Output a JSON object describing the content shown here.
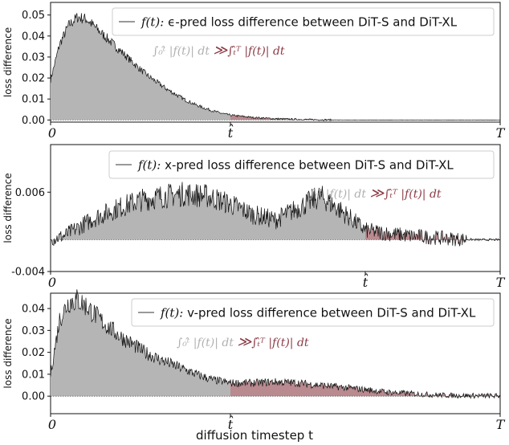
{
  "xlabel": "diffusion timestep t",
  "colors": {
    "gray_fill": "#b5b5b5",
    "red_fill": "#b98a8f",
    "red_text": "#8b3a44",
    "gray_text": "#b0b0b0",
    "line": "#111111"
  },
  "chart_data": [
    {
      "type": "area",
      "title": "",
      "ylabel": "loss difference",
      "ylim": [
        -0.001,
        0.056
      ],
      "yticks": [
        "0.00",
        "0.01",
        "0.02",
        "0.03",
        "0.04",
        "0.05"
      ],
      "ytick_values": [
        0.0,
        0.01,
        0.02,
        0.03,
        0.04,
        0.05
      ],
      "xticks": [
        "0",
        "t̂",
        "T"
      ],
      "xtick_values": [
        0,
        0.4,
        1.0
      ],
      "t_hat": 0.4,
      "legend_label": "f(t): ϵ-pred loss difference between DiT-S and DiT-XL",
      "legend_fn": "f(t):",
      "legend_desc": "ϵ-pred loss difference between DiT-S and DiT-XL",
      "annotation_left": "∫₀ᵗ̂ |f(t)| dt",
      "annotation_op": "≫",
      "annotation_right": "∫ₜ̂ᵀ |f(t)| dt",
      "x": [
        0,
        0.02,
        0.04,
        0.06,
        0.08,
        0.1,
        0.12,
        0.14,
        0.16,
        0.18,
        0.2,
        0.22,
        0.24,
        0.26,
        0.28,
        0.3,
        0.32,
        0.34,
        0.36,
        0.38,
        0.4,
        0.45,
        0.5,
        0.55,
        0.6,
        0.65,
        0.7,
        0.8,
        0.9,
        1.0
      ],
      "values": [
        0.019,
        0.036,
        0.045,
        0.049,
        0.048,
        0.044,
        0.04,
        0.036,
        0.032,
        0.028,
        0.024,
        0.0205,
        0.0175,
        0.0145,
        0.012,
        0.0095,
        0.0075,
        0.0058,
        0.0044,
        0.0032,
        0.0023,
        0.0012,
        0.0006,
        0.0003,
        0.0001,
        0.0,
        0.0,
        0.0,
        0.0,
        0.0
      ],
      "noise_rel": 0.05,
      "noise_abs": 0.0004
    },
    {
      "type": "area",
      "title": "",
      "ylabel": "loss difference",
      "ylim": [
        -0.004,
        0.012
      ],
      "yticks": [
        "-0.004",
        "0.006"
      ],
      "ytick_values": [
        -0.004,
        0.006
      ],
      "xticks": [
        "0",
        "t̂",
        "T"
      ],
      "xtick_values": [
        0,
        0.7,
        1.0
      ],
      "t_hat": 0.7,
      "legend_label": "f(t): x-pred loss difference between DiT-S and DiT-XL",
      "legend_fn": "f(t):",
      "legend_desc": "x-pred loss difference between DiT-S and DiT-XL",
      "annotation_left": "∫₀ᵗ̂ |f(t)| dt",
      "annotation_op": "≫",
      "annotation_right": "∫ₜ̂ᵀ |f(t)| dt",
      "x": [
        0,
        0.03,
        0.06,
        0.1,
        0.15,
        0.2,
        0.25,
        0.3,
        0.35,
        0.4,
        0.45,
        0.5,
        0.55,
        0.6,
        0.65,
        0.7,
        0.75,
        0.8,
        0.85,
        0.9,
        0.95,
        1.0
      ],
      "values": [
        0.0,
        0.0005,
        0.0015,
        0.0028,
        0.004,
        0.005,
        0.0055,
        0.0058,
        0.0055,
        0.0045,
        0.0032,
        0.0025,
        0.004,
        0.0055,
        0.0035,
        0.0012,
        0.0008,
        0.0005,
        0.0003,
        0.0001,
        0.0,
        0.0
      ],
      "noise_rel": 0.12,
      "noise_abs": 0.0009
    },
    {
      "type": "area",
      "title": "",
      "ylabel": "loss difference",
      "ylim": [
        -0.008,
        0.047
      ],
      "yticks": [
        "0.00",
        "0.01",
        "0.02",
        "0.03",
        "0.04"
      ],
      "ytick_values": [
        0.0,
        0.01,
        0.02,
        0.03,
        0.04
      ],
      "xticks": [
        "0",
        "t̂",
        "T"
      ],
      "xtick_values": [
        0,
        0.4,
        1.0
      ],
      "t_hat": 0.4,
      "legend_label": "f(t): v-pred loss difference between DiT-S and DiT-XL",
      "legend_fn": "f(t):",
      "legend_desc": "v-pred loss difference between DiT-S and DiT-XL",
      "annotation_left": "∫₀ᵗ̂ |f(t)| dt",
      "annotation_op": "≫",
      "annotation_right": "∫ₜ̂ᵀ |f(t)| dt",
      "x": [
        0,
        0.02,
        0.04,
        0.06,
        0.08,
        0.1,
        0.12,
        0.15,
        0.18,
        0.21,
        0.24,
        0.27,
        0.3,
        0.33,
        0.36,
        0.4,
        0.45,
        0.5,
        0.55,
        0.6,
        0.65,
        0.7,
        0.75,
        0.8,
        0.85,
        0.9,
        0.95,
        1.0
      ],
      "values": [
        0.01,
        0.035,
        0.043,
        0.044,
        0.041,
        0.037,
        0.033,
        0.028,
        0.024,
        0.02,
        0.017,
        0.0145,
        0.012,
        0.0095,
        0.0075,
        0.006,
        0.006,
        0.0065,
        0.006,
        0.005,
        0.004,
        0.003,
        0.0018,
        0.0012,
        0.0006,
        0.0003,
        0.0002,
        0.0001
      ],
      "noise_rel": 0.1,
      "noise_abs": 0.0012
    }
  ]
}
